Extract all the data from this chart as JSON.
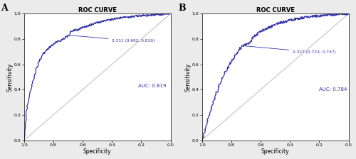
{
  "title": "ROC CURVE",
  "xlabel": "Specificity",
  "ylabel": "Sensitivity",
  "panel_A_label": "A",
  "panel_B_label": "B",
  "auc_A": "AUC: 0.819",
  "auc_B": "AUC: 0.784",
  "opt_A_text": "0.311 (0.692, 0.830)",
  "opt_B_text": "0.327 (0.723, 0.747)",
  "opt_A_fpr": 0.308,
  "opt_A_tpr": 0.83,
  "opt_B_fpr": 0.277,
  "opt_B_tpr": 0.747,
  "curve_color": "#3333AA",
  "diag_color": "#BBBBBB",
  "text_color": "#3333AA",
  "bg_color": "#EBEBEB",
  "plot_bg": "#FFFFFF",
  "xticks": [
    1.0,
    0.8,
    0.6,
    0.4,
    0.2,
    0.0
  ],
  "yticks": [
    0.0,
    0.2,
    0.4,
    0.6,
    0.8,
    1.0
  ]
}
